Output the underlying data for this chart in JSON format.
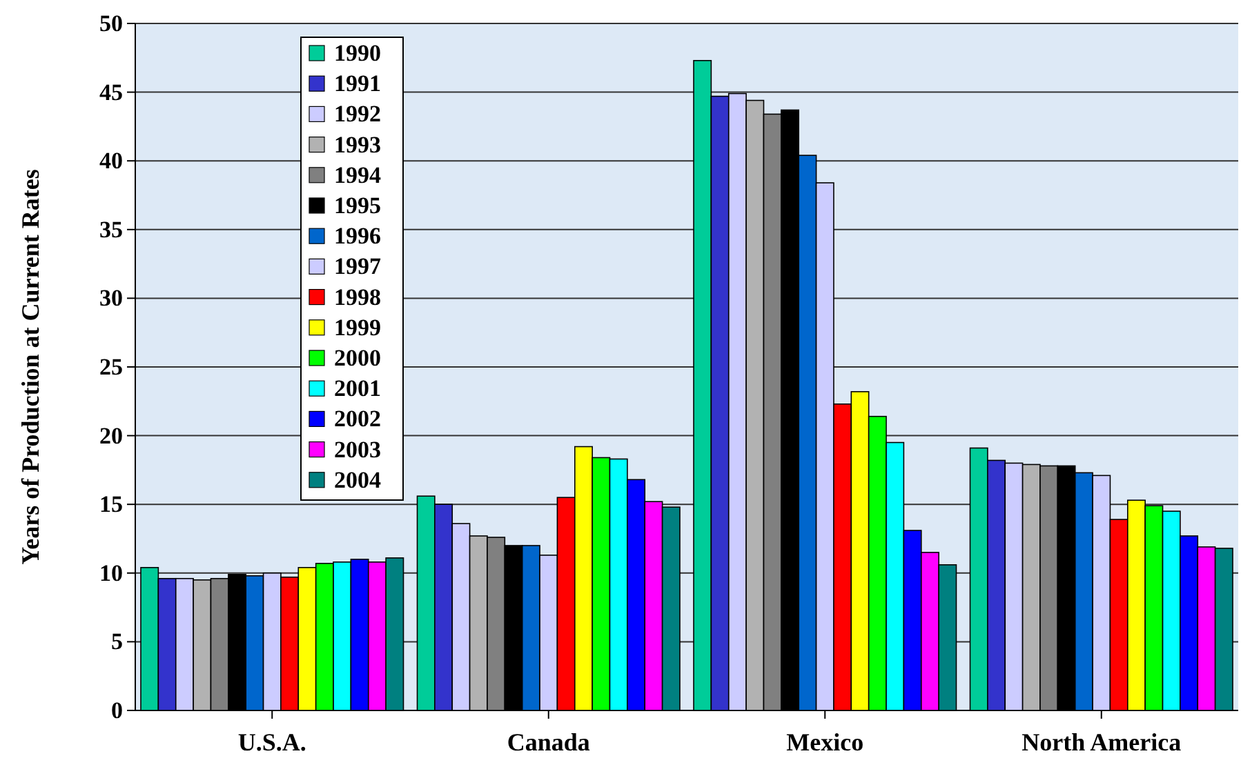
{
  "chart_data": {
    "type": "bar",
    "ylabel": "Years of Production at Current Rates",
    "categories": [
      "U.S.A.",
      "Canada",
      "Mexico",
      "North America"
    ],
    "ylim": [
      0,
      50
    ],
    "yticks": [
      0,
      5,
      10,
      15,
      20,
      25,
      30,
      35,
      40,
      45,
      50
    ],
    "grid": "y",
    "legend": "top left",
    "series": [
      {
        "name": "1990",
        "color": "#00cc99",
        "values": [
          10.4,
          15.6,
          47.3,
          19.1
        ]
      },
      {
        "name": "1991",
        "color": "#3333cc",
        "values": [
          9.6,
          15.0,
          44.7,
          18.2
        ]
      },
      {
        "name": "1992",
        "color": "#ccccff",
        "values": [
          9.6,
          13.6,
          44.9,
          18.0
        ]
      },
      {
        "name": "1993",
        "color": "#b2b2b2",
        "values": [
          9.5,
          12.7,
          44.4,
          17.9
        ]
      },
      {
        "name": "1994",
        "color": "#808080",
        "values": [
          9.6,
          12.6,
          43.4,
          17.8
        ]
      },
      {
        "name": "1995",
        "color": "#000000",
        "values": [
          9.9,
          12.0,
          43.7,
          17.8
        ]
      },
      {
        "name": "1996",
        "color": "#0066cc",
        "values": [
          9.8,
          12.0,
          40.4,
          17.3
        ]
      },
      {
        "name": "1997",
        "color": "#ccccff",
        "values": [
          10.0,
          11.3,
          38.4,
          17.1
        ]
      },
      {
        "name": "1998",
        "color": "#ff0000",
        "values": [
          9.7,
          15.5,
          22.3,
          13.9
        ]
      },
      {
        "name": "1999",
        "color": "#ffff00",
        "values": [
          10.4,
          19.2,
          23.2,
          15.3
        ]
      },
      {
        "name": "2000",
        "color": "#00ff00",
        "values": [
          10.7,
          18.4,
          21.4,
          14.9
        ]
      },
      {
        "name": "2001",
        "color": "#00ffff",
        "values": [
          10.8,
          18.3,
          19.5,
          14.5
        ]
      },
      {
        "name": "2002",
        "color": "#0000ff",
        "values": [
          11.0,
          16.8,
          13.1,
          12.7
        ]
      },
      {
        "name": "2003",
        "color": "#ff00ff",
        "values": [
          10.8,
          15.2,
          11.5,
          11.9
        ]
      },
      {
        "name": "2004",
        "color": "#008080",
        "values": [
          11.1,
          14.8,
          10.6,
          11.8
        ]
      }
    ]
  }
}
